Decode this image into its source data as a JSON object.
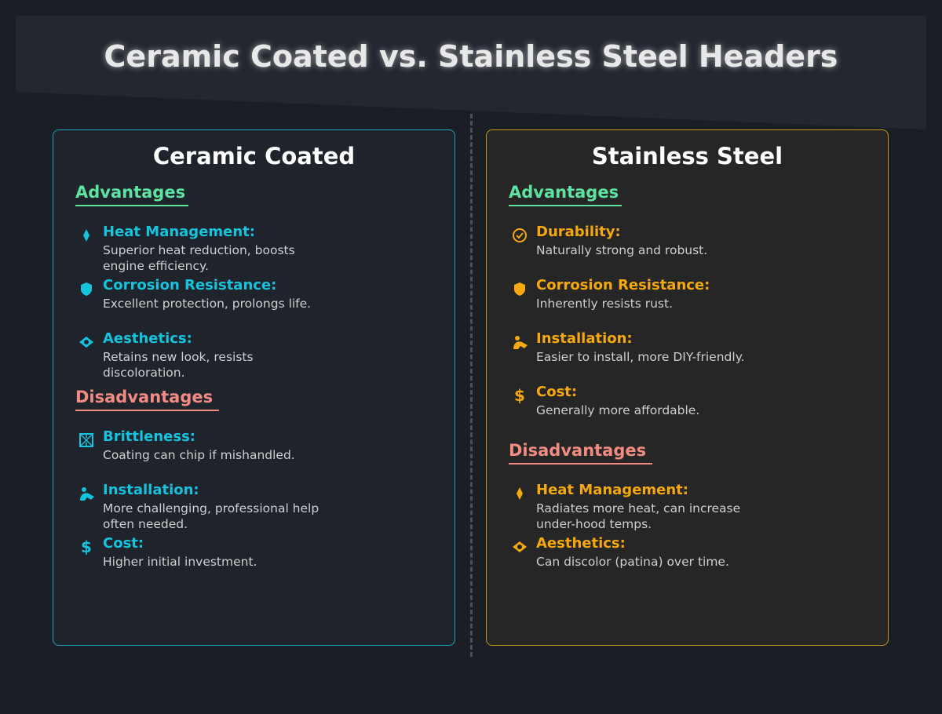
{
  "title": "Ceramic Coated vs. Stainless Steel Headers",
  "colors": {
    "ceramic_accent": "#16c3dc",
    "stainless_accent": "#f5a80f",
    "advantages": "#5ee2a0",
    "disadvantages": "#f28b82"
  },
  "ceramic": {
    "title": "Ceramic Coated",
    "advantages_label": "Advantages",
    "disadvantages_label": "Disadvantages",
    "advantages": [
      {
        "icon": "flame-icon",
        "title": "Heat Management:",
        "desc": "Superior heat reduction, boosts engine efficiency."
      },
      {
        "icon": "shield-icon",
        "title": "Corrosion Resistance:",
        "desc": "Excellent protection, prolongs life."
      },
      {
        "icon": "eye-icon",
        "title": "Aesthetics:",
        "desc": "Retains new look, resists discoloration."
      }
    ],
    "disadvantages": [
      {
        "icon": "broken-box-icon",
        "title": "Brittleness:",
        "desc": "Coating can chip if mishandled."
      },
      {
        "icon": "worker-icon",
        "title": "Installation:",
        "desc": "More challenging, professional help often needed."
      },
      {
        "icon": "dollar-icon",
        "title": "Cost:",
        "desc": "Higher initial investment."
      }
    ]
  },
  "stainless": {
    "title": "Stainless Steel",
    "advantages_label": "Advantages",
    "disadvantages_label": "Disadvantages",
    "advantages": [
      {
        "icon": "check-circle-icon",
        "title": "Durability:",
        "desc": "Naturally strong and robust."
      },
      {
        "icon": "shield-icon",
        "title": "Corrosion Resistance:",
        "desc": "Inherently resists rust."
      },
      {
        "icon": "worker-icon",
        "title": "Installation:",
        "desc": "Easier to install, more DIY-friendly."
      },
      {
        "icon": "dollar-icon",
        "title": "Cost:",
        "desc": "Generally more affordable."
      }
    ],
    "disadvantages": [
      {
        "icon": "flame-icon",
        "title": "Heat Management:",
        "desc": "Radiates more heat, can increase under-hood temps."
      },
      {
        "icon": "eye-icon",
        "title": "Aesthetics:",
        "desc": "Can discolor (patina) over time."
      }
    ]
  }
}
